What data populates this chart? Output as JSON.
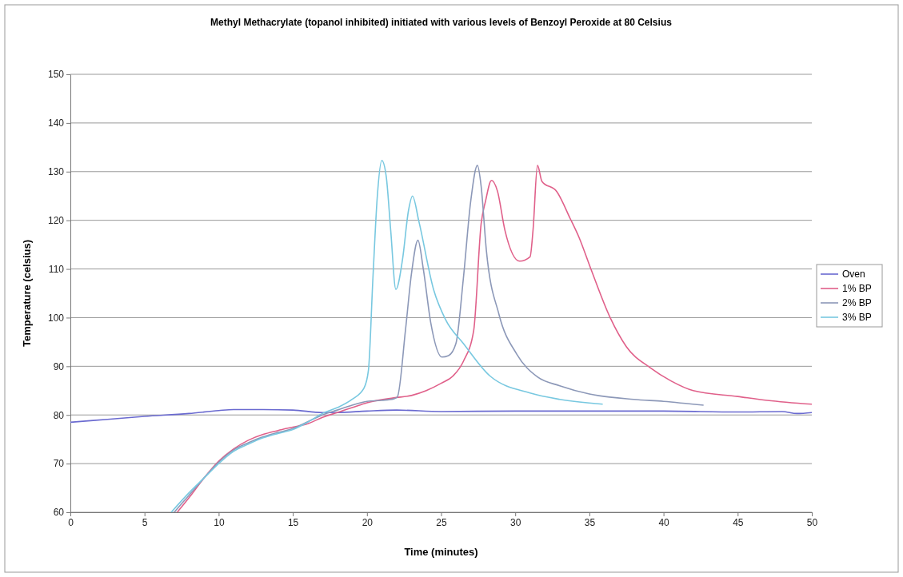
{
  "chart_data": {
    "type": "line",
    "title": "Methyl Methacrylate (topanol inhibited) initiated with various levels of Benzoyl Peroxide at 80 Celsius",
    "xlabel": "Time (minutes)",
    "ylabel": "Temperature (celsius)",
    "xlim": [
      0,
      50
    ],
    "xticks": [
      0,
      5,
      10,
      15,
      20,
      25,
      30,
      35,
      40,
      45,
      50
    ],
    "ylim": [
      60,
      150
    ],
    "yticks": [
      60,
      70,
      80,
      90,
      100,
      110,
      120,
      130,
      140,
      150
    ],
    "grid": "y",
    "legend": "right",
    "marker": "none",
    "line_style": "solid",
    "series": [
      {
        "name": "Oven",
        "color": "#6a6ad0",
        "x": [
          0,
          2.5,
          5,
          8,
          10,
          11,
          13,
          15,
          17,
          18,
          20,
          22,
          25,
          30,
          35,
          40,
          45,
          48,
          49,
          50
        ],
        "values": [
          78.5,
          79.1,
          79.7,
          80.3,
          80.9,
          81.1,
          81.1,
          81,
          80.5,
          80.5,
          80.8,
          81,
          80.7,
          80.8,
          80.8,
          80.8,
          80.6,
          80.7,
          80.3,
          80.5
        ]
      },
      {
        "name": "1% BP",
        "color": "#e0608a",
        "x": [
          7.2,
          8,
          9,
          10,
          11,
          12,
          13,
          14,
          15,
          16,
          17,
          18,
          19,
          20,
          21.8,
          23,
          24,
          25,
          25.8,
          26.5,
          27.2,
          27.7,
          28,
          28.4,
          28.8,
          29.3,
          30.3,
          31,
          31.2,
          31.5,
          31.8,
          32.8,
          33.7,
          34.3,
          35.1,
          36.4,
          37.5,
          39.1,
          40.5,
          42,
          45,
          47,
          50
        ],
        "values": [
          60,
          63,
          67,
          70.5,
          73,
          74.8,
          76,
          76.8,
          77.5,
          78.2,
          79.5,
          80.5,
          81.5,
          82.5,
          83.5,
          84,
          85,
          86.5,
          88,
          91,
          97.4,
          119.3,
          124,
          128.2,
          126,
          118,
          111.6,
          112.5,
          118,
          131.3,
          128,
          125.9,
          120.4,
          116.5,
          110,
          100,
          94,
          89.7,
          87,
          85,
          83.8,
          83,
          82.2
        ]
      },
      {
        "name": "2% BP",
        "color": "#8c98b8",
        "x": [
          7,
          8,
          9,
          10,
          11,
          12,
          13,
          14,
          15,
          16,
          17,
          18,
          19,
          20,
          21,
          21.8,
          22.05,
          22.6,
          23,
          23.44,
          23.8,
          24.3,
          25.06,
          25.5,
          26,
          26.5,
          27,
          27.45,
          27.7,
          28.05,
          28.9,
          30.1,
          31.5,
          33,
          35,
          38,
          40,
          42.7
        ],
        "values": [
          60,
          63.5,
          67,
          70.3,
          72.8,
          74.3,
          75.5,
          76.4,
          77.2,
          78.6,
          80,
          81,
          82,
          82.8,
          83,
          83.3,
          83.7,
          97.5,
          109,
          115.9,
          110,
          99,
          91.9,
          92.2,
          94.7,
          108,
          124,
          131.3,
          127,
          113.9,
          100.7,
          92.5,
          87.8,
          86,
          84.3,
          83.2,
          82.8,
          82
        ]
      },
      {
        "name": "3% BP",
        "color": "#78c8e0",
        "x": [
          6.8,
          8,
          9,
          10,
          11,
          12,
          13,
          14,
          15,
          16,
          17,
          18,
          19,
          19.8,
          20.1,
          20.4,
          20.7,
          21,
          21.3,
          21.6,
          21.95,
          22.4,
          22.8,
          23.07,
          23.5,
          24.5,
          25.3,
          26.5,
          28.3,
          31,
          33,
          35.9
        ],
        "values": [
          60,
          64,
          67,
          70,
          72.5,
          74,
          75.3,
          76.2,
          77,
          78.5,
          80.3,
          81.5,
          83.2,
          85.5,
          89.2,
          108,
          125,
          132.3,
          129,
          118,
          105.8,
          112,
          122,
          125,
          119.8,
          105.7,
          99.6,
          94.7,
          88,
          84.5,
          83.2,
          82.2
        ]
      }
    ]
  }
}
